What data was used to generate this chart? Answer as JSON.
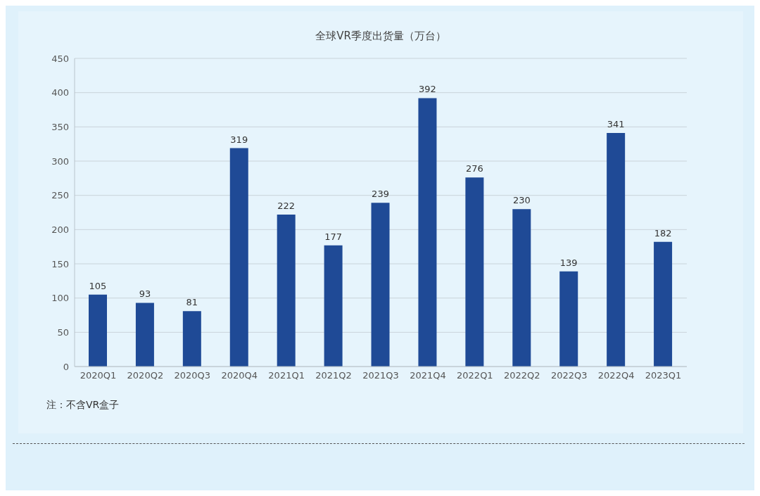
{
  "chart_data": {
    "type": "bar",
    "title": "全球VR季度出货量（万台）",
    "categories": [
      "2020Q1",
      "2020Q2",
      "2020Q3",
      "2020Q4",
      "2021Q1",
      "2021Q2",
      "2021Q3",
      "2021Q4",
      "2022Q1",
      "2022Q2",
      "2022Q3",
      "2022Q4",
      "2023Q1"
    ],
    "values": [
      105,
      93,
      81,
      319,
      222,
      177,
      239,
      392,
      276,
      230,
      139,
      341,
      182
    ],
    "color": "#1f4a96",
    "ylim": [
      0,
      450
    ],
    "yticks": [
      0,
      50,
      100,
      150,
      200,
      250,
      300,
      350,
      400,
      450
    ],
    "grid": "y",
    "data_labels": true,
    "annotations": [
      "注：不含VR盒子"
    ]
  }
}
